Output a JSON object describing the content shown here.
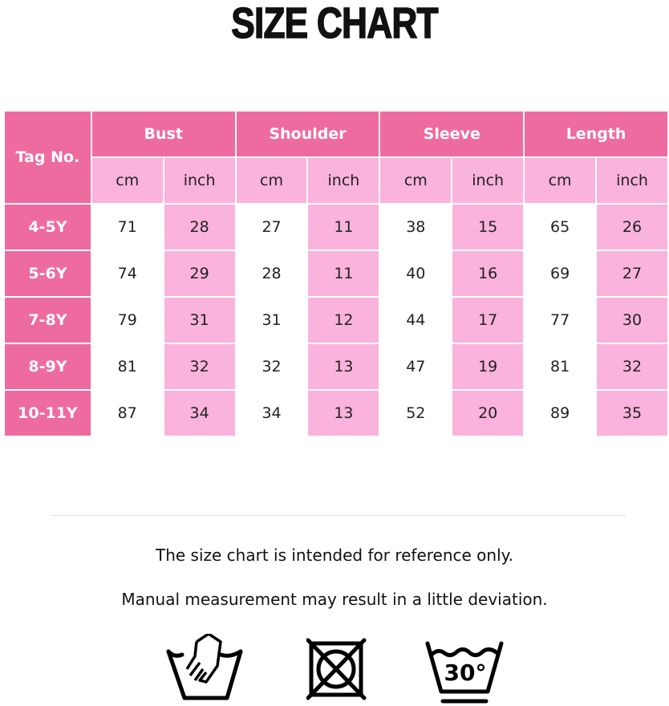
{
  "title": "SIZE CHART",
  "table": {
    "tag_header": "Tag No.",
    "groups": [
      "Bust",
      "Shoulder",
      "Sleeve",
      "Length"
    ],
    "units": [
      "cm",
      "inch"
    ],
    "rows": [
      {
        "tag": "4-5Y",
        "values": [
          "71",
          "28",
          "27",
          "11",
          "38",
          "15",
          "65",
          "26"
        ]
      },
      {
        "tag": "5-6Y",
        "values": [
          "74",
          "29",
          "28",
          "11",
          "40",
          "16",
          "69",
          "27"
        ]
      },
      {
        "tag": "7-8Y",
        "values": [
          "79",
          "31",
          "31",
          "12",
          "44",
          "17",
          "77",
          "30"
        ]
      },
      {
        "tag": "8-9Y",
        "values": [
          "81",
          "32",
          "32",
          "13",
          "47",
          "19",
          "81",
          "32"
        ]
      },
      {
        "tag": "10-11Y",
        "values": [
          "87",
          "34",
          "34",
          "13",
          "52",
          "20",
          "89",
          "35"
        ]
      }
    ]
  },
  "notes": [
    "The size chart is intended for reference only.",
    "Manual measurement may result in a little deviation."
  ],
  "care_icons": {
    "hand_wash": "hand-wash-icon",
    "no_tumble_dry": "do-not-tumble-dry-icon",
    "wash_30": "wash-30-icon",
    "wash_30_label": "30°"
  },
  "colors": {
    "header_dark": "#ee6b9f",
    "header_light": "#f9b3dc"
  }
}
